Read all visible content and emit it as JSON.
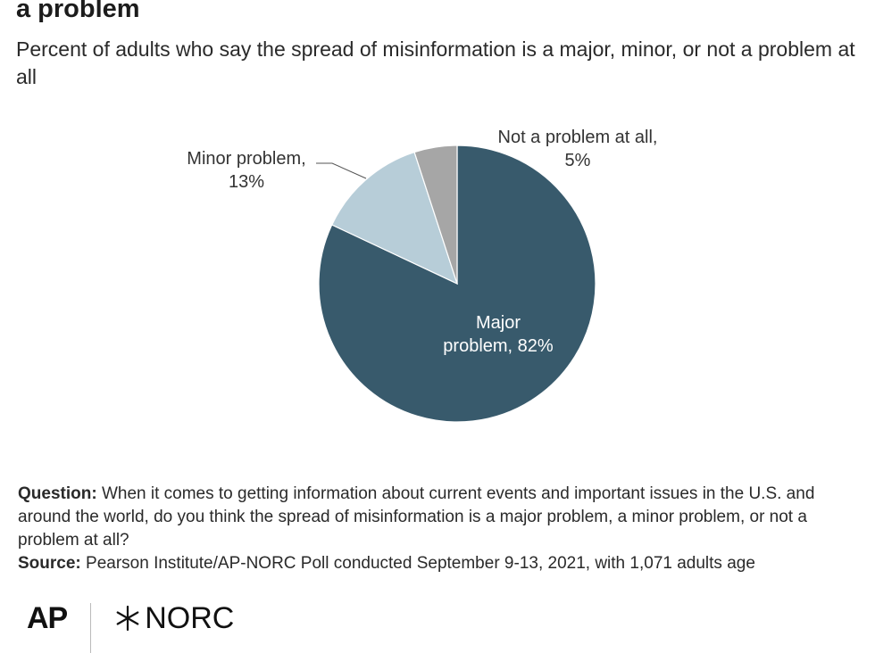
{
  "title": "a problem",
  "subtitle": "Percent of adults who say the spread of misinformation is a major, minor, or not a problem at all",
  "chart_data": {
    "type": "pie",
    "slices": [
      {
        "name": "Major problem",
        "value": 82,
        "label_lines": [
          "Major",
          "problem, 82%"
        ],
        "color": "#385a6c",
        "label_inside": true
      },
      {
        "name": "Minor problem",
        "value": 13,
        "label_lines": [
          "Minor problem,",
          "13%"
        ],
        "color": "#b7cdd8",
        "label_inside": false
      },
      {
        "name": "Not a problem at all",
        "value": 5,
        "label_lines": [
          "Not a problem at all,",
          "5%"
        ],
        "color": "#a6a6a6",
        "label_inside": false
      }
    ],
    "start": "12 o'clock",
    "direction": "clockwise"
  },
  "notes": {
    "question_label": "Question:",
    "question_text": "When it comes to getting information about current events and important issues in the U.S. and around the world, do you think the spread of misinformation is a major problem, a minor problem, or not a problem at all?",
    "source_label": "Source:",
    "source_text": "Pearson Institute/AP-NORC Poll conducted September 9-13, 2021, with 1,071 adults age"
  },
  "footer": {
    "ap_logo": "AP",
    "norc_logo": "NORC"
  }
}
